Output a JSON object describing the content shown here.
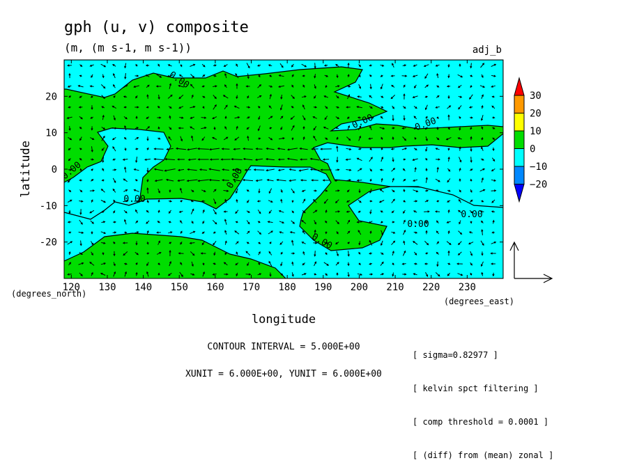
{
  "chart_data": {
    "type": "contour-vector",
    "title": "gph (u, v) composite",
    "subtitle": "(m, (m s-1, m s-1))",
    "corner_label": "adj_b",
    "xlabel": "longitude",
    "ylabel": "latitude",
    "x_units": "(degrees_east)",
    "y_units": "(degrees_north)",
    "xlim": [
      118,
      240
    ],
    "ylim": [
      -30,
      30
    ],
    "x_ticks": [
      120,
      130,
      140,
      150,
      160,
      170,
      180,
      190,
      200,
      210,
      220,
      230
    ],
    "y_ticks": [
      -20,
      -10,
      0,
      10,
      20
    ],
    "contour_label": "0.00",
    "contour_label_count": 9,
    "contour_interval_text": "CONTOUR INTERVAL = 5.000E+00",
    "vector_unit_text": "XUNIT = 6.000E+00, YUNIT = 6.000E+00",
    "colorbar": {
      "labels": [
        "30",
        "20",
        "10",
        "0",
        "−10",
        "−20"
      ],
      "colors": [
        "#ff0000",
        "#ff9900",
        "#ffff00",
        "#00dd00",
        "#00ffff",
        "#0088ff",
        "#0000ff"
      ]
    },
    "fill_colors": {
      "positive": "#00dd00",
      "negative": "#00ffff"
    },
    "notes": [
      "[ sigma=0.82977 ]",
      "[ kelvin spct filtering ]",
      "[ comp threshold = 0.0001 ]",
      "[ (diff) from (mean) zonal ]"
    ]
  }
}
